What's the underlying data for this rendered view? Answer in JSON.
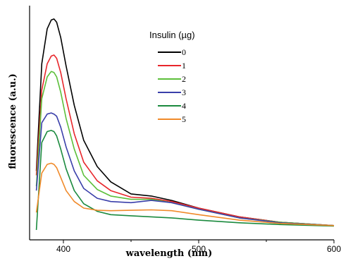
{
  "chart_data": {
    "type": "line",
    "xlabel": "wavelength (nm)",
    "ylabel": "fluorescence (a.u.)",
    "xlim": [
      375,
      600
    ],
    "ylim": [
      0,
      1.0
    ],
    "xticks": [
      400,
      500,
      600
    ],
    "grid": false,
    "legend": {
      "title": "Insulin (µg)",
      "placement": "top-center"
    },
    "series": [
      {
        "name": "0",
        "color": "#000000",
        "x": [
          380,
          384,
          388,
          391,
          393,
          395,
          398,
          402,
          408,
          415,
          425,
          435,
          450,
          465,
          480,
          500,
          530,
          560,
          600
        ],
        "y": [
          0.27,
          0.76,
          0.92,
          0.96,
          0.965,
          0.95,
          0.88,
          0.75,
          0.57,
          0.41,
          0.29,
          0.22,
          0.165,
          0.155,
          0.135,
          0.1,
          0.06,
          0.035,
          0.02
        ]
      },
      {
        "name": "1",
        "color": "#e8262b",
        "x": [
          380,
          384,
          388,
          391,
          393,
          395,
          398,
          402,
          408,
          415,
          425,
          435,
          450,
          465,
          480,
          500,
          530,
          560,
          600
        ],
        "y": [
          0.25,
          0.64,
          0.76,
          0.795,
          0.8,
          0.785,
          0.72,
          0.6,
          0.44,
          0.31,
          0.225,
          0.18,
          0.15,
          0.145,
          0.13,
          0.1,
          0.06,
          0.035,
          0.02
        ]
      },
      {
        "name": "2",
        "color": "#5cbf3a",
        "x": [
          380,
          384,
          388,
          391,
          393,
          395,
          398,
          402,
          408,
          415,
          425,
          435,
          450,
          465,
          480,
          500,
          530,
          560,
          600
        ],
        "y": [
          0.2,
          0.6,
          0.7,
          0.725,
          0.72,
          0.7,
          0.63,
          0.51,
          0.37,
          0.25,
          0.185,
          0.155,
          0.14,
          0.14,
          0.125,
          0.095,
          0.055,
          0.035,
          0.02
        ]
      },
      {
        "name": "3",
        "color": "#3a3faa",
        "x": [
          380,
          384,
          388,
          391,
          393,
          395,
          398,
          402,
          408,
          415,
          425,
          435,
          450,
          465,
          480,
          500,
          530,
          560,
          600
        ],
        "y": [
          0.18,
          0.49,
          0.53,
          0.535,
          0.53,
          0.52,
          0.47,
          0.38,
          0.27,
          0.19,
          0.145,
          0.13,
          0.125,
          0.135,
          0.125,
          0.095,
          0.055,
          0.033,
          0.02
        ]
      },
      {
        "name": "4",
        "color": "#1b8a3e",
        "x": [
          380,
          384,
          388,
          391,
          393,
          395,
          398,
          402,
          408,
          415,
          425,
          435,
          450,
          465,
          480,
          500,
          530,
          560,
          600
        ],
        "y": [
          0.0,
          0.4,
          0.45,
          0.455,
          0.45,
          0.43,
          0.37,
          0.28,
          0.18,
          0.12,
          0.085,
          0.07,
          0.065,
          0.06,
          0.055,
          0.045,
          0.033,
          0.025,
          0.018
        ]
      },
      {
        "name": "5",
        "color": "#f08a2a",
        "x": [
          380,
          384,
          388,
          391,
          393,
          395,
          398,
          402,
          408,
          415,
          425,
          435,
          450,
          465,
          480,
          500,
          530,
          560,
          600
        ],
        "y": [
          0.08,
          0.26,
          0.3,
          0.305,
          0.3,
          0.285,
          0.24,
          0.18,
          0.13,
          0.1,
          0.09,
          0.088,
          0.09,
          0.092,
          0.088,
          0.07,
          0.045,
          0.03,
          0.02
        ]
      }
    ]
  }
}
